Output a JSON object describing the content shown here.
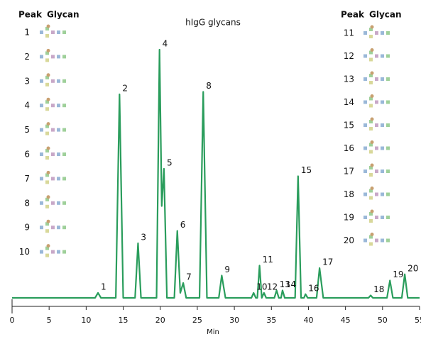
{
  "chart_data": {
    "type": "line",
    "title": "hIgG glycans",
    "x_label": "Min",
    "color": "#2a9d5c",
    "xlim": [
      0,
      55
    ],
    "xticks": [
      0,
      5,
      10,
      15,
      20,
      25,
      30,
      35,
      40,
      45,
      50,
      55
    ],
    "x": [
      0,
      11.2,
      11.6,
      12.0,
      14.0,
      14.5,
      15.0,
      16.6,
      17.0,
      17.4,
      19.5,
      19.9,
      20.2,
      20.5,
      20.9,
      21.9,
      22.3,
      22.7,
      23.1,
      23.5,
      25.3,
      25.8,
      26.3,
      27.9,
      28.3,
      28.8,
      32.3,
      32.6,
      32.9,
      33.1,
      33.4,
      33.7,
      34.0,
      34.3,
      35.4,
      35.7,
      36.0,
      36.3,
      36.5,
      36.8,
      38.2,
      38.6,
      39.0,
      39.4,
      39.6,
      39.9,
      41.1,
      41.5,
      42.0,
      48.1,
      48.4,
      48.7,
      50.6,
      51.0,
      51.4,
      52.6,
      53.0,
      53.4,
      55
    ],
    "values": [
      0,
      0,
      2,
      0,
      0,
      82,
      0,
      0,
      22,
      0,
      0,
      100,
      37,
      52,
      0,
      0,
      27,
      2,
      6,
      0,
      0,
      83,
      0,
      0,
      9,
      0,
      0,
      2,
      0,
      0,
      13,
      0,
      2,
      0,
      0,
      3,
      0,
      0,
      3,
      0,
      0,
      49,
      0,
      0,
      1.5,
      0,
      0,
      12,
      0,
      0,
      1,
      0,
      0,
      7,
      0,
      0,
      9.5,
      0,
      0
    ],
    "peaks": [
      {
        "label": "1",
        "x": 11.6
      },
      {
        "label": "2",
        "x": 14.5
      },
      {
        "label": "3",
        "x": 17.0
      },
      {
        "label": "4",
        "x": 19.9
      },
      {
        "label": "5",
        "x": 20.5
      },
      {
        "label": "6",
        "x": 22.3
      },
      {
        "label": "7",
        "x": 23.1
      },
      {
        "label": "8",
        "x": 25.8
      },
      {
        "label": "9",
        "x": 28.3
      },
      {
        "label": "10",
        "x": 32.6
      },
      {
        "label": "11",
        "x": 33.4
      },
      {
        "label": "12",
        "x": 34.0
      },
      {
        "label": "13",
        "x": 35.7
      },
      {
        "label": "14",
        "x": 36.5
      },
      {
        "label": "15",
        "x": 38.6
      },
      {
        "label": "16",
        "x": 39.6
      },
      {
        "label": "17",
        "x": 41.5
      },
      {
        "label": "18",
        "x": 48.4
      },
      {
        "label": "19",
        "x": 51.0
      },
      {
        "label": "20",
        "x": 53.0
      }
    ],
    "glycan_legend": {
      "header": [
        "Peak",
        "Glycan"
      ],
      "left_rows": [
        "1",
        "2",
        "3",
        "4",
        "5",
        "6",
        "7",
        "8",
        "9",
        "10"
      ],
      "right_rows": [
        "11",
        "12",
        "13",
        "14",
        "15",
        "16",
        "17",
        "18",
        "19",
        "20"
      ]
    }
  }
}
